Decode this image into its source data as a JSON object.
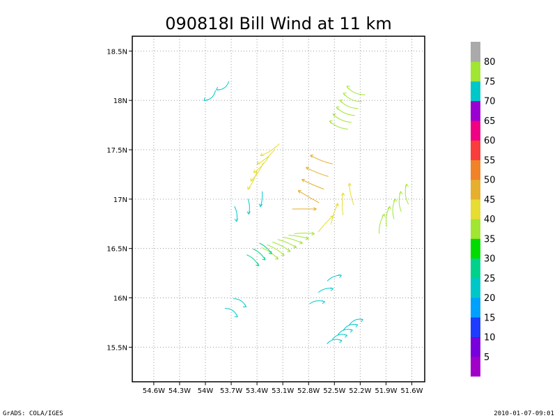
{
  "chart_data": {
    "type": "vector",
    "title": "090818I Bill Wind at 11 km",
    "x_ticks": [
      "54.6W",
      "54.3W",
      "54W",
      "53.7W",
      "53.4W",
      "53.1W",
      "52.8W",
      "52.5W",
      "52.2W",
      "51.9W",
      "51.6W"
    ],
    "y_ticks": [
      "15.5N",
      "16N",
      "16.5N",
      "17N",
      "17.5N",
      "18N",
      "18.5N"
    ],
    "xlim": [
      54.85,
      51.45
    ],
    "ylim": [
      15.15,
      18.65
    ],
    "x_tick_values": [
      54.6,
      54.3,
      54.0,
      53.7,
      53.4,
      53.1,
      52.8,
      52.5,
      52.2,
      51.9,
      51.6
    ],
    "y_tick_values": [
      15.5,
      16.0,
      16.5,
      17.0,
      17.5,
      18.0,
      18.5
    ],
    "grid": true,
    "storm_center": [
      52.85,
      16.95
    ],
    "colorbar": {
      "levels": [
        "5",
        "10",
        "15",
        "20",
        "25",
        "30",
        "35",
        "40",
        "45",
        "50",
        "55",
        "60",
        "65",
        "70",
        "75",
        "80"
      ],
      "colors": [
        "#a000c8",
        "#7800dc",
        "#1e3cff",
        "#00a0ff",
        "#00c8c8",
        "#00d28c",
        "#00dc00",
        "#a0e632",
        "#e6dc32",
        "#e6af2d",
        "#f08228",
        "#fa3c3c",
        "#f00082",
        "#9a00d2",
        "#00c8c8",
        "#a0e632",
        "#aaaaaa"
      ]
    },
    "vector_groups": [
      {
        "lat_range": [
          18.05,
          18.15
        ],
        "lon_range": [
          53.95,
          53.8
        ],
        "speed": 22,
        "count": 2
      },
      {
        "lat_range": [
          17.75,
          18.1
        ],
        "lon_range": [
          52.45,
          52.25
        ],
        "speed": 35,
        "count": 6
      },
      {
        "lat_range": [
          17.2,
          17.5
        ],
        "lon_range": [
          53.45,
          53.25
        ],
        "speed": 40,
        "count": 5
      },
      {
        "lat_range": [
          16.9,
          17.4
        ],
        "lon_range": [
          52.85,
          52.65
        ],
        "speed": 45,
        "count": 5
      },
      {
        "lat_range": [
          16.75,
          17.05
        ],
        "lon_range": [
          52.6,
          52.3
        ],
        "speed": 40,
        "count": 4
      },
      {
        "lat_range": [
          16.75,
          17.05
        ],
        "lon_range": [
          51.95,
          51.65
        ],
        "speed": 35,
        "count": 5
      },
      {
        "lat_range": [
          16.45,
          16.65
        ],
        "lon_range": [
          53.25,
          52.85
        ],
        "speed": 35,
        "count": 7
      },
      {
        "lat_range": [
          16.38,
          16.5
        ],
        "lon_range": [
          53.45,
          53.3
        ],
        "speed": 25,
        "count": 3
      },
      {
        "lat_range": [
          15.95,
          16.2
        ],
        "lon_range": [
          52.7,
          52.5
        ],
        "speed": 22,
        "count": 3
      },
      {
        "lat_range": [
          15.85,
          15.95
        ],
        "lon_range": [
          53.7,
          53.6
        ],
        "speed": 22,
        "count": 2
      },
      {
        "lat_range": [
          15.55,
          15.75
        ],
        "lon_range": [
          52.5,
          52.25
        ],
        "speed": 22,
        "count": 5
      },
      {
        "lat_range": [
          16.85,
          17.0
        ],
        "lon_range": [
          53.65,
          53.35
        ],
        "speed": 22,
        "count": 3
      }
    ]
  },
  "footer": {
    "left": "GrADS: COLA/IGES",
    "right": "2010-01-07-09:01"
  }
}
